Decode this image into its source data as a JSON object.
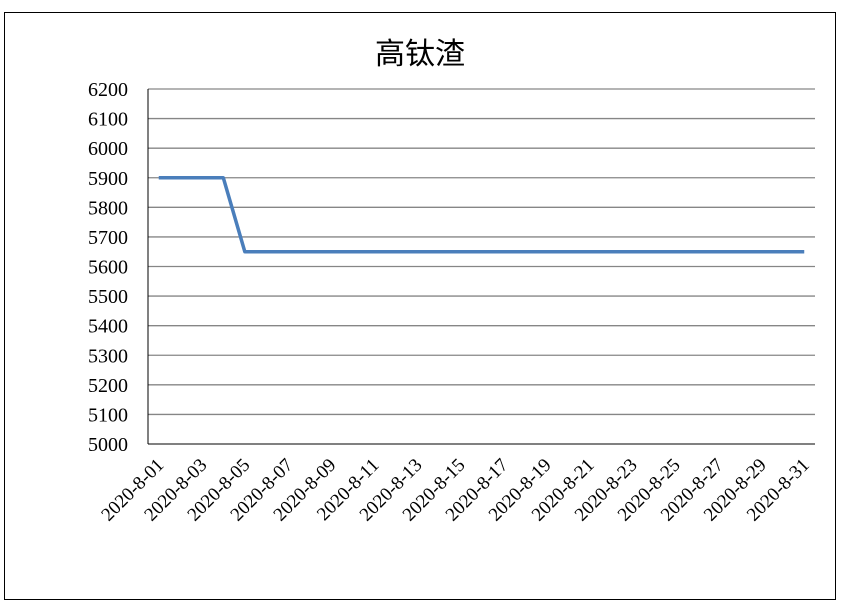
{
  "chart_data": {
    "type": "line",
    "title": "高钛渣",
    "xlabel": "",
    "ylabel": "",
    "ylim": [
      5000,
      6200
    ],
    "y_ticks": [
      5000,
      5100,
      5200,
      5300,
      5400,
      5500,
      5600,
      5700,
      5800,
      5900,
      6000,
      6100,
      6200
    ],
    "grid": true,
    "legend": "none",
    "x": [
      "2020-8-01",
      "2020-8-02",
      "2020-8-03",
      "2020-8-04",
      "2020-8-05",
      "2020-8-06",
      "2020-8-07",
      "2020-8-08",
      "2020-8-09",
      "2020-8-10",
      "2020-8-11",
      "2020-8-12",
      "2020-8-13",
      "2020-8-14",
      "2020-8-15",
      "2020-8-16",
      "2020-8-17",
      "2020-8-18",
      "2020-8-19",
      "2020-8-20",
      "2020-8-21",
      "2020-8-22",
      "2020-8-23",
      "2020-8-24",
      "2020-8-25",
      "2020-8-26",
      "2020-8-27",
      "2020-8-28",
      "2020-8-29",
      "2020-8-30",
      "2020-8-31"
    ],
    "x_tick_labels": [
      "2020-8-01",
      "2020-8-03",
      "2020-8-05",
      "2020-8-07",
      "2020-8-09",
      "2020-8-11",
      "2020-8-13",
      "2020-8-15",
      "2020-8-17",
      "2020-8-19",
      "2020-8-21",
      "2020-8-23",
      "2020-8-25",
      "2020-8-27",
      "2020-8-29",
      "2020-8-31"
    ],
    "series": [
      {
        "values": [
          5900,
          5900,
          5900,
          5900,
          5650,
          5650,
          5650,
          5650,
          5650,
          5650,
          5650,
          5650,
          5650,
          5650,
          5650,
          5650,
          5650,
          5650,
          5650,
          5650,
          5650,
          5650,
          5650,
          5650,
          5650,
          5650,
          5650,
          5650,
          5650,
          5650,
          5650
        ],
        "color": "#4a7ebb"
      }
    ],
    "colors": {
      "line": "#4a7ebb",
      "grid": "#868686",
      "axis": "#000000"
    }
  }
}
